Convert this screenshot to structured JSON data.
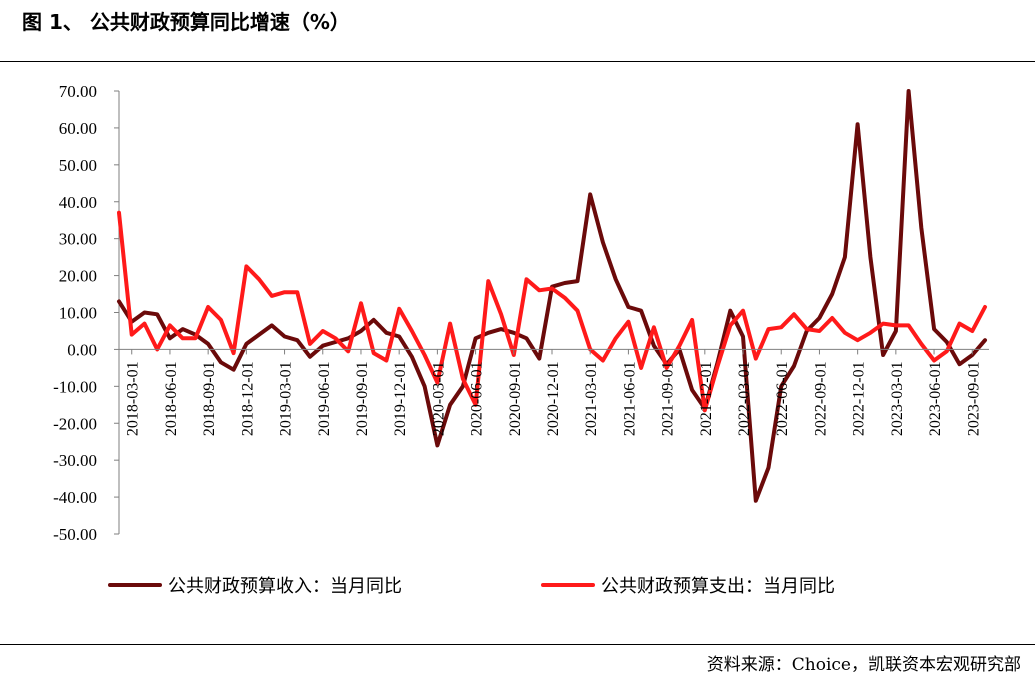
{
  "header": {
    "title": "图 1、 公共财政预算同比增速（%）"
  },
  "footer": {
    "source": "资料来源：Choice，凯联资本宏观研究部"
  },
  "colors": {
    "revenue": "#6b0a0a",
    "expenditure": "#ff1a1a"
  },
  "chart_data": {
    "type": "line",
    "title": "",
    "xlabel": "",
    "ylabel": "",
    "ylim": [
      -50,
      70
    ],
    "yticks": [
      "70.00",
      "60.00",
      "50.00",
      "40.00",
      "30.00",
      "20.00",
      "10.00",
      "0.00",
      "-10.00",
      "-20.00",
      "-30.00",
      "-40.00",
      "-50.00"
    ],
    "xtick_labels": [
      "2018-03-01",
      "2018-06-01",
      "2018-09-01",
      "2018-12-01",
      "2019-03-01",
      "2019-06-01",
      "2019-09-01",
      "2019-12-01",
      "2020-03-01",
      "2020-06-01",
      "2020-09-01",
      "2020-12-01",
      "2021-03-01",
      "2021-06-01",
      "2021-09-01",
      "2021-12-01",
      "2022-03-01",
      "2022-06-01",
      "2022-09-01",
      "2022-12-01",
      "2023-03-01",
      "2023-06-01",
      "2023-09-01"
    ],
    "x": [
      "2018-02",
      "2018-03",
      "2018-04",
      "2018-05",
      "2018-06",
      "2018-07",
      "2018-08",
      "2018-09",
      "2018-10",
      "2018-11",
      "2018-12",
      "2019-01",
      "2019-02",
      "2019-03",
      "2019-04",
      "2019-05",
      "2019-06",
      "2019-07",
      "2019-08",
      "2019-09",
      "2019-10",
      "2019-11",
      "2019-12",
      "2020-01",
      "2020-02",
      "2020-03",
      "2020-04",
      "2020-05",
      "2020-06",
      "2020-07",
      "2020-08",
      "2020-09",
      "2020-10",
      "2020-11",
      "2020-12",
      "2021-01",
      "2021-02",
      "2021-03",
      "2021-04",
      "2021-05",
      "2021-06",
      "2021-07",
      "2021-08",
      "2021-09",
      "2021-10",
      "2021-11",
      "2021-12",
      "2022-01",
      "2022-02",
      "2022-03",
      "2022-04",
      "2022-05",
      "2022-06",
      "2022-07",
      "2022-08",
      "2022-09",
      "2022-10",
      "2022-11",
      "2022-12",
      "2023-01",
      "2023-02",
      "2023-03",
      "2023-04",
      "2023-05",
      "2023-06",
      "2023-07",
      "2023-08",
      "2023-09",
      "2023-10"
    ],
    "legend_position": "bottom",
    "series": [
      {
        "name": "公共财政预算收入：当月同比",
        "values": [
          13.0,
          7.5,
          10.0,
          9.5,
          3.0,
          5.5,
          4.0,
          1.5,
          -3.5,
          -5.5,
          1.5,
          4.0,
          6.5,
          3.5,
          2.5,
          -2.0,
          1.0,
          2.0,
          3.0,
          5.0,
          8.0,
          4.5,
          3.5,
          -2.0,
          -10.0,
          -26.0,
          -15.0,
          -10.0,
          3.0,
          4.5,
          5.5,
          4.5,
          3.0,
          -2.5,
          17.0,
          18.0,
          18.5,
          42.0,
          29.0,
          19.0,
          11.5,
          10.5,
          1.0,
          -4.0,
          0.0,
          -11.0,
          -16.0,
          -3.5,
          10.5,
          3.5,
          -41.0,
          -32.0,
          -10.0,
          -4.5,
          5.0,
          8.5,
          15.0,
          25.0,
          61.0,
          25.0,
          -1.5,
          5.0,
          70.0,
          33.0,
          5.5,
          2.0,
          -4.0,
          -1.5,
          2.5
        ]
      },
      {
        "name": "公共财政预算支出：当月同比",
        "values": [
          37.0,
          4.0,
          7.0,
          0.0,
          6.5,
          3.0,
          3.0,
          11.5,
          8.0,
          -1.0,
          22.5,
          19.0,
          14.5,
          15.5,
          15.5,
          1.5,
          5.0,
          3.0,
          -0.5,
          12.5,
          -1.0,
          -3.0,
          11.0,
          5.0,
          -1.5,
          -9.0,
          7.0,
          -8.0,
          -15.0,
          18.5,
          9.5,
          -1.5,
          19.0,
          16.0,
          16.5,
          14.0,
          10.5,
          0.0,
          -3.0,
          3.0,
          7.5,
          -5.0,
          6.0,
          -5.0,
          1.0,
          8.0,
          -16.5,
          -4.5,
          6.5,
          10.5,
          -2.5,
          5.5,
          6.0,
          9.5,
          5.5,
          5.0,
          8.5,
          4.5,
          2.5,
          4.5,
          7.0,
          6.5,
          6.5,
          1.5,
          -3.0,
          -0.5,
          7.0,
          5.0,
          11.5
        ]
      }
    ]
  }
}
